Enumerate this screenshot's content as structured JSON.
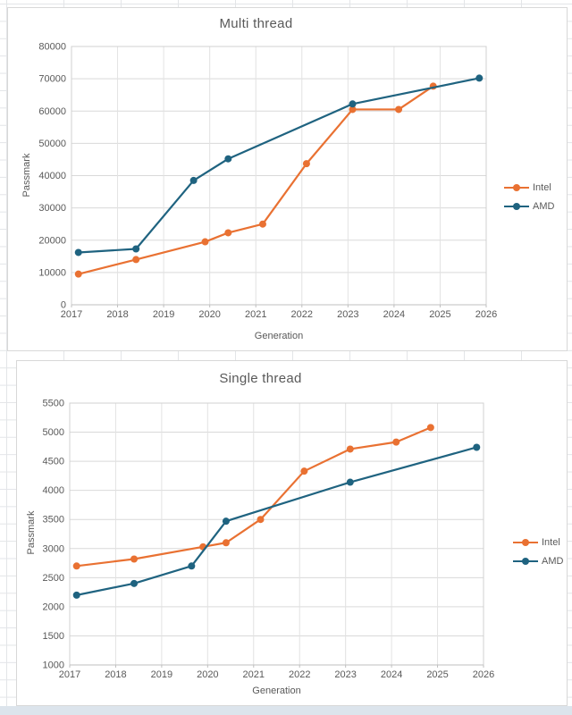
{
  "sheet": {
    "gridline_color": "#e3e5e8",
    "bottom_strip_color": "#dce4ec"
  },
  "chart_data": [
    {
      "type": "line",
      "title": "Multi thread",
      "xlabel": "Generation",
      "ylabel": "Passmark",
      "ylim": [
        0,
        80000
      ],
      "ystep": 10000,
      "xlim": [
        2017,
        2026
      ],
      "xticks": [
        "2017",
        "2018",
        "2019",
        "2020",
        "2021",
        "2022",
        "2023",
        "2024",
        "2025",
        "2026"
      ],
      "grid": true,
      "legend_position": "right",
      "series": [
        {
          "name": "Intel",
          "color": "#E97132",
          "x": [
            2017.15,
            2018.4,
            2019.9,
            2020.4,
            2021.15,
            2022.1,
            2023.1,
            2024.1,
            2024.85
          ],
          "y": [
            9500,
            14000,
            19500,
            22300,
            25000,
            43700,
            60500,
            60500,
            67700
          ]
        },
        {
          "name": "AMD",
          "color": "#1F6380",
          "x": [
            2017.15,
            2018.4,
            2019.65,
            2020.4,
            2023.1,
            2025.85
          ],
          "y": [
            16200,
            17300,
            38500,
            45200,
            62200,
            70200
          ]
        }
      ]
    },
    {
      "type": "line",
      "title": "Single thread",
      "xlabel": "Generation",
      "ylabel": "Passmark",
      "ylim": [
        1000,
        5500
      ],
      "ystep": 500,
      "xlim": [
        2017,
        2026
      ],
      "xticks": [
        "2017",
        "2018",
        "2019",
        "2020",
        "2021",
        "2022",
        "2023",
        "2024",
        "2025",
        "2026"
      ],
      "grid": true,
      "legend_position": "right",
      "series": [
        {
          "name": "Intel",
          "color": "#E97132",
          "x": [
            2017.15,
            2018.4,
            2019.9,
            2020.4,
            2021.15,
            2022.1,
            2023.1,
            2024.1,
            2024.85
          ],
          "y": [
            2700,
            2820,
            3030,
            3100,
            3500,
            4330,
            4710,
            4830,
            5080
          ]
        },
        {
          "name": "AMD",
          "color": "#1F6380",
          "x": [
            2017.15,
            2018.4,
            2019.65,
            2020.4,
            2023.1,
            2025.85
          ],
          "y": [
            2200,
            2400,
            2700,
            3470,
            4140,
            4740
          ]
        }
      ]
    }
  ]
}
